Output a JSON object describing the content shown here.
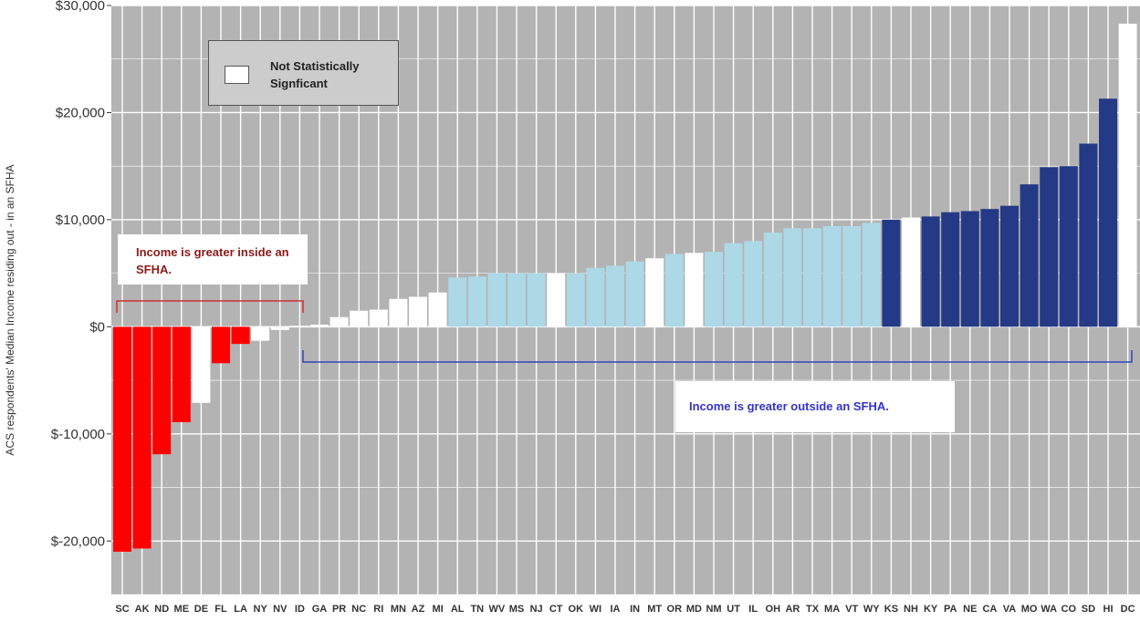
{
  "chart_data": {
    "type": "bar",
    "ylabel": "ACS respondents' Median Income residing out - in an SFHA",
    "xlabel": "",
    "ylim": [
      -25000,
      30000
    ],
    "yticks": [
      -20000,
      -10000,
      0,
      10000,
      20000,
      30000
    ],
    "ytick_labels": [
      "$-20,000",
      "$-10,000",
      "$0",
      "$10,000",
      "$20,000",
      "$30,000"
    ],
    "grid": true,
    "legend": {
      "placement": "top-left",
      "label": "Not Statistically Signficant",
      "color": "#ffffff"
    },
    "annotations": {
      "inside": "Income is greater inside an SFHA.",
      "outside": "Income is greater outside an SFHA."
    },
    "colors": {
      "background": "#b3b3b3",
      "grid": "#ffffff",
      "inside": "#ff0000",
      "not_significant": "#ffffff",
      "outside_light": "#add8e6",
      "outside_dark": "#253a86",
      "inside_text": "#8b1a1a",
      "outside_text": "#3333cc",
      "inside_bracket": "#cc3333",
      "outside_bracket": "#3344bb"
    },
    "categories": [
      "SC",
      "AK",
      "ND",
      "ME",
      "DE",
      "FL",
      "LA",
      "NY",
      "NV",
      "ID",
      "GA",
      "PR",
      "NC",
      "RI",
      "MN",
      "AZ",
      "MI",
      "AL",
      "TN",
      "WV",
      "MS",
      "NJ",
      "CT",
      "OK",
      "WI",
      "IA",
      "IN",
      "MT",
      "OR",
      "MD",
      "NM",
      "UT",
      "IL",
      "OH",
      "AR",
      "TX",
      "MA",
      "VT",
      "WY",
      "KS",
      "NH",
      "KY",
      "PA",
      "NE",
      "CA",
      "VA",
      "MO",
      "WA",
      "CO",
      "SD",
      "HI",
      "DC"
    ],
    "values": [
      -21000,
      -20700,
      -11900,
      -8900,
      -7100,
      -3400,
      -1600,
      -1300,
      -300,
      100,
      200,
      900,
      1500,
      1600,
      2600,
      2800,
      3200,
      4600,
      4700,
      5000,
      5000,
      5000,
      5000,
      5000,
      5500,
      5700,
      6100,
      6400,
      6800,
      6900,
      7000,
      7800,
      8000,
      8800,
      9200,
      9200,
      9400,
      9400,
      9700,
      10000,
      10200,
      10300,
      10700,
      10800,
      11000,
      11300,
      13300,
      14900,
      15000,
      17100,
      21300,
      28300
    ],
    "status": [
      "in",
      "in",
      "in",
      "in",
      "ns",
      "in",
      "in",
      "ns",
      "ns",
      "ns",
      "ns",
      "ns",
      "ns",
      "ns",
      "ns",
      "ns",
      "ns",
      "lo",
      "lo",
      "lo",
      "lo",
      "lo",
      "ns",
      "lo",
      "lo",
      "lo",
      "lo",
      "ns",
      "lo",
      "ns",
      "lo",
      "lo",
      "lo",
      "lo",
      "lo",
      "lo",
      "lo",
      "lo",
      "lo",
      "hi",
      "ns",
      "hi",
      "hi",
      "hi",
      "hi",
      "hi",
      "hi",
      "hi",
      "hi",
      "hi",
      "hi",
      "ns"
    ]
  }
}
